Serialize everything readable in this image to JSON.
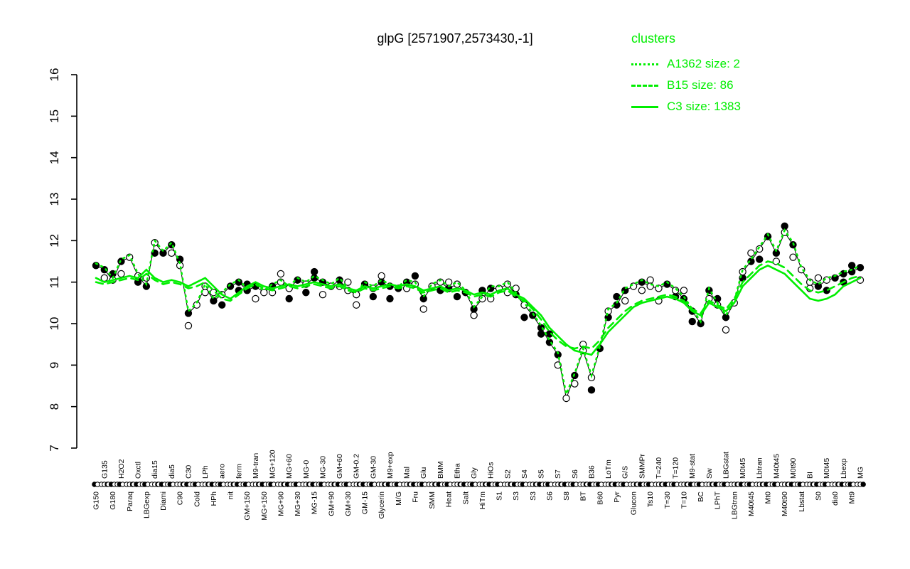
{
  "title": "glpG [2571907,2573430,-1]",
  "legend": {
    "title": "clusters",
    "entries": [
      {
        "label": "A1362 size: 2",
        "style": "dotted"
      },
      {
        "label": "B15 size: 86",
        "style": "dashed"
      },
      {
        "label": "C3 size: 1383",
        "style": "solid"
      }
    ]
  },
  "colors": {
    "cluster_green": "#00ee00",
    "point_black": "#000000",
    "open_point_fill": "#ffffff"
  },
  "chart_data": {
    "type": "line",
    "title": "glpG [2571907,2573430,-1]",
    "xlabel": "",
    "ylabel": "",
    "ylim": [
      7,
      16
    ],
    "yticks": [
      7,
      8,
      9,
      10,
      11,
      12,
      13,
      14,
      15,
      16
    ],
    "grid": false,
    "legend_position": "top-right",
    "categories": [
      [
        "G150",
        "b"
      ],
      [
        "G135",
        "t"
      ],
      [
        "G180",
        "b"
      ],
      [
        "H2O2",
        "t"
      ],
      [
        "Paraq",
        "b"
      ],
      [
        "Oxctl",
        "t"
      ],
      [
        "LBGexp",
        "b"
      ],
      [
        "dia15",
        "t"
      ],
      [
        "Diami",
        "b"
      ],
      [
        "dia5",
        "t"
      ],
      [
        "C90",
        "b"
      ],
      [
        "C30",
        "t"
      ],
      [
        "Cold",
        "b"
      ],
      [
        "LPh",
        "t"
      ],
      [
        "HPh",
        "b"
      ],
      [
        "aero",
        "t"
      ],
      [
        "nit",
        "b"
      ],
      [
        "ferm",
        "t"
      ],
      [
        "GM+150",
        "b"
      ],
      [
        "M9-tran",
        "t"
      ],
      [
        "MG+150",
        "b"
      ],
      [
        "MG+120",
        "t"
      ],
      [
        "MG+90",
        "b"
      ],
      [
        "MG+60",
        "t"
      ],
      [
        "MG+30",
        "b"
      ],
      [
        "MG-0",
        "t"
      ],
      [
        "MG-15",
        "b"
      ],
      [
        "MG-30",
        "t"
      ],
      [
        "GM+90",
        "b"
      ],
      [
        "GM+60",
        "t"
      ],
      [
        "GM+30",
        "b"
      ],
      [
        "GM-0.2",
        "t"
      ],
      [
        "GM-15",
        "b"
      ],
      [
        "GM-30",
        "t"
      ],
      [
        "Glycerin",
        "b"
      ],
      [
        "M9+exp",
        "t"
      ],
      [
        "M/G",
        "b"
      ],
      [
        "Mal",
        "t"
      ],
      [
        "Fru",
        "b"
      ],
      [
        "Glu",
        "t"
      ],
      [
        "SMM",
        "b"
      ],
      [
        "BMM",
        "t"
      ],
      [
        "Heat",
        "b"
      ],
      [
        "Etha",
        "t"
      ],
      [
        "Salt",
        "b"
      ],
      [
        "Gly",
        "t"
      ],
      [
        "HiTm",
        "b"
      ],
      [
        "HiOs",
        "t"
      ],
      [
        "S1",
        "b"
      ],
      [
        "S2",
        "t"
      ],
      [
        "S3",
        "b"
      ],
      [
        "S4",
        "t"
      ],
      [
        "S3",
        "b"
      ],
      [
        "S5",
        "t"
      ],
      [
        "S6",
        "b"
      ],
      [
        "S7",
        "t"
      ],
      [
        "S8",
        "b"
      ],
      [
        "S6",
        "t"
      ],
      [
        "BT",
        "b"
      ],
      [
        "B36",
        "t"
      ],
      [
        "B60",
        "b"
      ],
      [
        "LoTm",
        "t"
      ],
      [
        "Pyr",
        "b"
      ],
      [
        "G/S",
        "t"
      ],
      [
        "Glucon",
        "b"
      ],
      [
        "SMMPr",
        "t"
      ],
      [
        "Ts10",
        "b"
      ],
      [
        "T=240",
        "t"
      ],
      [
        "T=30",
        "b"
      ],
      [
        "T=120",
        "t"
      ],
      [
        "T=10",
        "b"
      ],
      [
        "M9-stat",
        "t"
      ],
      [
        "BC",
        "b"
      ],
      [
        "Sw",
        "t"
      ],
      [
        "LPhT",
        "b"
      ],
      [
        "LBGstat",
        "t"
      ],
      [
        "LBGtran",
        "b"
      ],
      [
        "M0t45",
        "t"
      ],
      [
        "M40t45",
        "b"
      ],
      [
        "Lbtran",
        "t"
      ],
      [
        "Mt0",
        "b"
      ],
      [
        "M40t45",
        "t"
      ],
      [
        "M40t90",
        "b"
      ],
      [
        "M0t90",
        "t"
      ],
      [
        "Lbstat",
        "b"
      ],
      [
        "BI",
        "t"
      ],
      [
        "S0",
        "b"
      ],
      [
        "M0t45",
        "t"
      ],
      [
        "dia0",
        "b"
      ],
      [
        "Lbexp",
        "t"
      ],
      [
        "Mt9",
        "b"
      ],
      [
        "MG",
        "t"
      ]
    ],
    "series": [
      {
        "name": "glpG expression points",
        "type": "scatter",
        "color": "#000000",
        "marker_fill_cycle": "110100101101001011",
        "open_point_offsets": [
          0.25,
          -0.2,
          0.15,
          -0.3,
          0.3,
          -0.15,
          0.2,
          -0.25
        ],
        "values": [
          11.4,
          11.3,
          11.05,
          11.5,
          11.6,
          11.15,
          10.9,
          11.95,
          11.7,
          11.9,
          11.4,
          10.25,
          10.45,
          10.9,
          10.55,
          10.7,
          10.9,
          11.0,
          10.8,
          10.9,
          10.75,
          10.9,
          11.0,
          10.85,
          11.05,
          10.95,
          11.1,
          11.0,
          10.9,
          11.05,
          10.8,
          10.7,
          10.95,
          10.85,
          11.0,
          10.9,
          10.85,
          11.0,
          10.95,
          10.6,
          10.9,
          11.0,
          10.85,
          10.95,
          10.75,
          10.35,
          10.6,
          10.85,
          10.85,
          10.95,
          10.7,
          10.45,
          10.2,
          9.9,
          9.55,
          9.25,
          8.2,
          8.75,
          9.35,
          8.7,
          9.4,
          10.3,
          10.45,
          10.8,
          10.9,
          11.0,
          10.9,
          10.85,
          10.95,
          10.8,
          10.6,
          10.3,
          10.0,
          10.8,
          10.45,
          10.15,
          10.5,
          11.25,
          11.5,
          11.8,
          12.1,
          11.7,
          12.2,
          11.9,
          11.3,
          11.0,
          10.9,
          11.05,
          11.1,
          11.2,
          11.25,
          11.35
        ]
      },
      {
        "name": "A1362 size: 2",
        "type": "line",
        "style": "dotted",
        "color": "#00ee00",
        "values": [
          11.45,
          11.35,
          11.1,
          11.55,
          11.65,
          11.2,
          10.95,
          12.0,
          11.75,
          11.95,
          11.45,
          10.3,
          10.5,
          10.95,
          10.6,
          10.75,
          10.95,
          11.05,
          10.85,
          10.95,
          10.8,
          10.95,
          11.05,
          10.9,
          11.1,
          11.0,
          11.15,
          11.05,
          10.95,
          11.1,
          10.85,
          10.75,
          11.0,
          10.9,
          11.05,
          10.95,
          10.9,
          11.05,
          11.0,
          10.65,
          10.95,
          11.05,
          10.9,
          11.0,
          10.8,
          10.4,
          10.65,
          10.9,
          10.9,
          11.0,
          10.75,
          10.5,
          10.25,
          9.95,
          9.6,
          9.3,
          8.3,
          8.8,
          9.4,
          8.75,
          9.45,
          10.35,
          10.5,
          10.85,
          10.95,
          11.05,
          10.95,
          10.9,
          11.0,
          10.85,
          10.65,
          10.35,
          10.05,
          10.85,
          10.5,
          10.2,
          10.55,
          11.3,
          11.55,
          11.85,
          12.15,
          11.75,
          12.25,
          11.95,
          11.35,
          11.05,
          10.95,
          11.1,
          11.15,
          11.25,
          11.3,
          11.4
        ]
      },
      {
        "name": "B15 size: 86",
        "type": "line",
        "style": "dashed",
        "color": "#00ee00",
        "values": [
          11.0,
          10.95,
          11.0,
          11.05,
          11.1,
          11.05,
          11.2,
          11.05,
          10.95,
          11.0,
          10.95,
          10.85,
          10.9,
          11.0,
          10.8,
          10.6,
          10.55,
          10.7,
          10.85,
          10.95,
          10.85,
          10.8,
          10.85,
          10.9,
          10.85,
          10.9,
          10.95,
          10.9,
          10.85,
          10.9,
          10.8,
          10.75,
          10.85,
          10.8,
          10.85,
          10.9,
          10.85,
          10.9,
          10.85,
          10.75,
          10.8,
          10.85,
          10.75,
          10.8,
          10.75,
          10.65,
          10.7,
          10.65,
          10.75,
          10.8,
          10.65,
          10.55,
          10.35,
          10.1,
          9.8,
          9.6,
          9.45,
          9.4,
          9.45,
          9.4,
          9.6,
          9.9,
          10.1,
          10.3,
          10.45,
          10.55,
          10.6,
          10.65,
          10.7,
          10.65,
          10.55,
          10.35,
          10.25,
          10.55,
          10.45,
          10.35,
          10.6,
          11.0,
          11.2,
          11.4,
          11.5,
          11.45,
          11.35,
          11.15,
          10.95,
          10.8,
          10.75,
          10.8,
          10.9,
          11.0,
          11.1,
          11.15
        ]
      },
      {
        "name": "C3 size: 1383",
        "type": "line",
        "style": "solid",
        "color": "#00ee00",
        "values": [
          11.1,
          11.0,
          11.05,
          11.1,
          11.15,
          11.1,
          11.3,
          11.1,
          11.0,
          11.05,
          11.0,
          10.9,
          11.0,
          11.1,
          10.9,
          10.7,
          10.6,
          10.75,
          10.9,
          11.0,
          10.9,
          10.85,
          10.9,
          10.95,
          10.9,
          10.95,
          11.0,
          10.95,
          10.9,
          10.95,
          10.85,
          10.8,
          10.9,
          10.85,
          10.9,
          10.95,
          10.9,
          10.95,
          10.9,
          10.8,
          10.85,
          10.9,
          10.8,
          10.85,
          10.8,
          10.7,
          10.75,
          10.7,
          10.8,
          10.85,
          10.7,
          10.6,
          10.4,
          10.2,
          9.9,
          9.7,
          9.5,
          9.35,
          9.3,
          9.25,
          9.5,
          9.8,
          10.0,
          10.2,
          10.4,
          10.5,
          10.55,
          10.6,
          10.65,
          10.6,
          10.5,
          10.3,
          10.2,
          10.5,
          10.4,
          10.3,
          10.5,
          10.9,
          11.1,
          11.3,
          11.4,
          11.3,
          11.2,
          11.0,
          10.8,
          10.6,
          10.55,
          10.6,
          10.7,
          10.9,
          11.0,
          11.1
        ]
      }
    ]
  }
}
